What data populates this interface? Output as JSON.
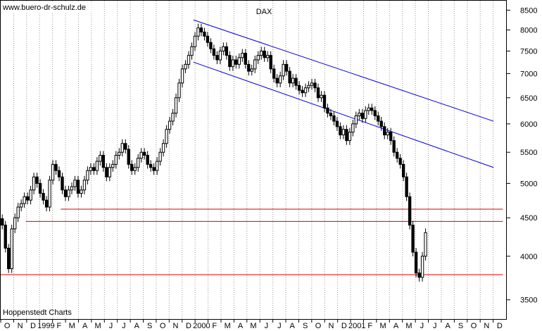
{
  "header": {
    "source_label": "www.buero-dr-schulz.de",
    "footer_label": "Hoppenstedt Charts"
  },
  "colors": {
    "grid": "#9a9a9a",
    "trend_channel": "#0000cc",
    "support_lines": "#dd0000",
    "candles": "#000000",
    "background": "#ffffff"
  },
  "chart_data": {
    "type": "candlestick",
    "title": "DAX",
    "y_scale": "log",
    "ylim": [
      3300,
      8750
    ],
    "y_ticks": [
      3500,
      4000,
      4500,
      5000,
      5500,
      6000,
      6500,
      7000,
      7500,
      8000,
      8500
    ],
    "x_tick_labels": [
      "O",
      "N",
      "D",
      "1999",
      "F",
      "M",
      "A",
      "M",
      "J",
      "J",
      "A",
      "S",
      "O",
      "N",
      "D",
      "2000",
      "F",
      "M",
      "A",
      "M",
      "J",
      "J",
      "A",
      "S",
      "O",
      "N",
      "D",
      "2001",
      "F",
      "M",
      "A",
      "M",
      "J",
      "J",
      "A",
      "S",
      "O",
      "N",
      "D"
    ],
    "x_range_weeks": [
      0,
      160
    ],
    "grid": "vertical dotted lines at month boundaries",
    "weekly_close": [
      4400,
      4100,
      3850,
      4350,
      4500,
      4650,
      4700,
      4800,
      4750,
      4900,
      5100,
      5000,
      4850,
      4750,
      4650,
      5050,
      5300,
      5200,
      5100,
      4900,
      4800,
      4900,
      4950,
      5050,
      4850,
      4900,
      5050,
      5200,
      5250,
      5200,
      5350,
      5450,
      5250,
      5100,
      5250,
      5300,
      5450,
      5500,
      5650,
      5550,
      5300,
      5200,
      5250,
      5400,
      5500,
      5450,
      5300,
      5250,
      5200,
      5350,
      5500,
      5650,
      5900,
      6050,
      6200,
      6500,
      6800,
      7100,
      7200,
      7400,
      7600,
      7850,
      8050,
      7950,
      7850,
      7700,
      7550,
      7400,
      7300,
      7500,
      7600,
      7400,
      7150,
      7300,
      7200,
      7350,
      7450,
      7200,
      7050,
      7100,
      7300,
      7400,
      7500,
      7350,
      7400,
      7100,
      6900,
      6800,
      6950,
      7200,
      7050,
      6800,
      6900,
      6750,
      6650,
      6600,
      6700,
      6750,
      6800,
      6700,
      6500,
      6550,
      6300,
      6200,
      6150,
      6050,
      5950,
      5800,
      5900,
      5700,
      5850,
      6000,
      6150,
      6200,
      6100,
      6250,
      6300,
      6250,
      6150,
      6050,
      5950,
      5800,
      5850,
      5700,
      5500,
      5400,
      5300,
      5100,
      4800,
      4400,
      4050,
      3800,
      3750,
      4000,
      4300
    ],
    "trend_channel": {
      "upper": [
        {
          "week": 61,
          "value": 8250
        },
        {
          "week": 156,
          "value": 6050
        }
      ],
      "lower": [
        {
          "week": 61,
          "value": 7250
        },
        {
          "week": 156,
          "value": 5250
        }
      ]
    },
    "support_levels": [
      {
        "value": 4620,
        "from_week": 19,
        "to_week": 159
      },
      {
        "value": 4450,
        "from_week": 8,
        "to_week": 159
      },
      {
        "value": 3780,
        "from_week": 0,
        "to_week": 159
      }
    ]
  }
}
